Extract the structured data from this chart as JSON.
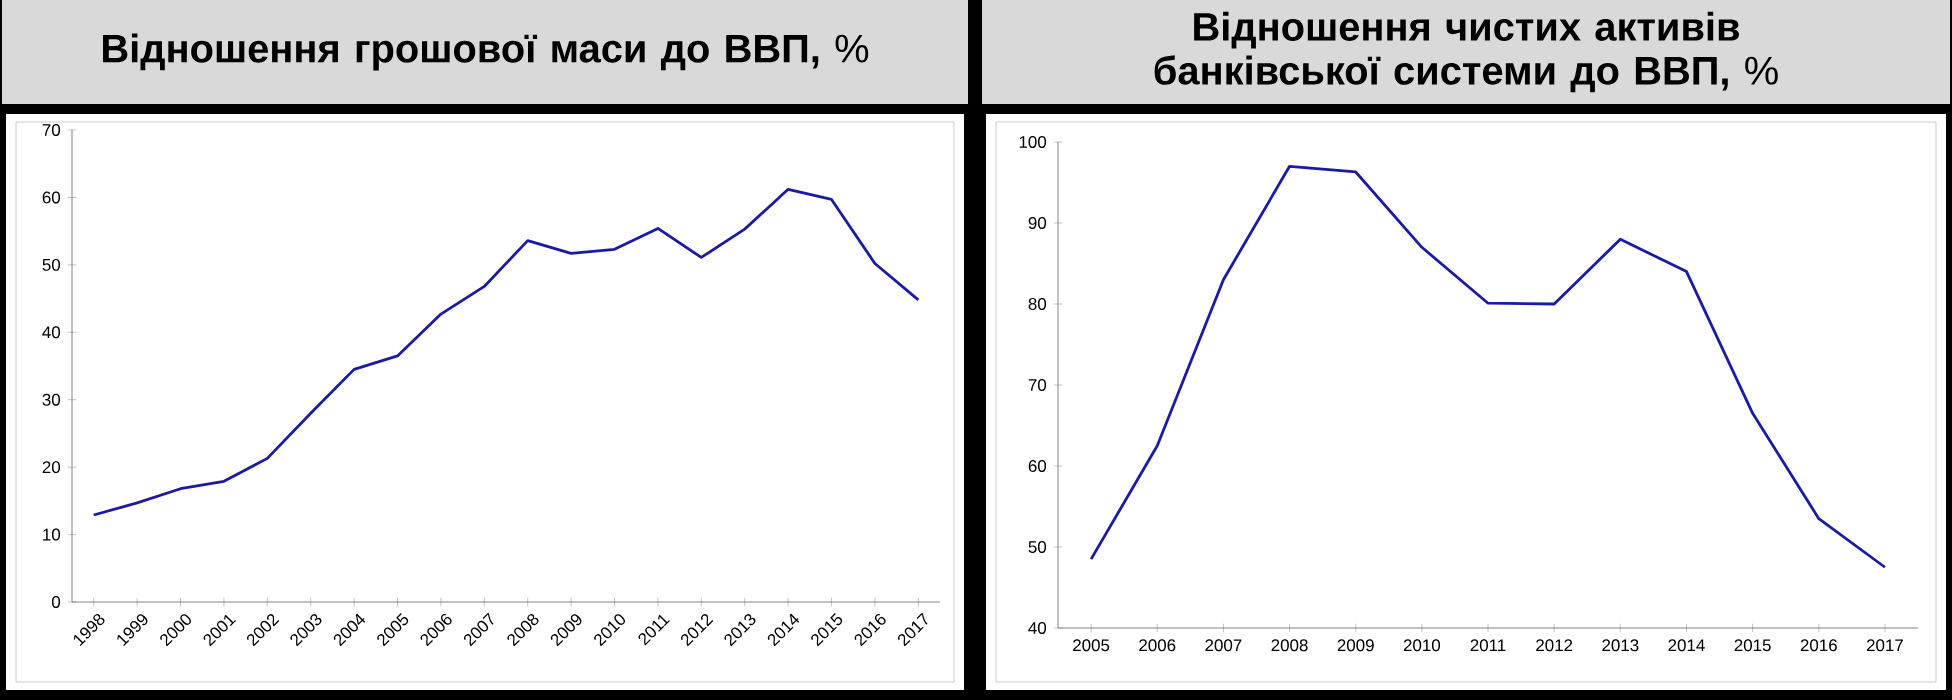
{
  "chart_data": [
    {
      "type": "line",
      "title": "**Відношення грошової маси до ВВП,** %",
      "categories": [
        "1998",
        "1999",
        "2000",
        "2001",
        "2002",
        "2003",
        "2004",
        "2005",
        "2006",
        "2007",
        "2008",
        "2009",
        "2010",
        "2011",
        "2012",
        "2013",
        "2014",
        "2015",
        "2016",
        "2017"
      ],
      "values": [
        12.9,
        14.7,
        16.8,
        17.9,
        21.3,
        28,
        34.5,
        36.5,
        42.7,
        46.8,
        53.6,
        51.7,
        52.3,
        55.4,
        51.1,
        55.3,
        61.2,
        59.7,
        50.2,
        44.8
      ],
      "color": "#1a1aa8",
      "ylim": [
        0,
        70
      ],
      "yticks": [
        0,
        10,
        20,
        30,
        40,
        50,
        60,
        70
      ]
    },
    {
      "type": "line",
      "title": "**Відношення чистих активів банківської системи до ВВП,** %",
      "categories": [
        "2005",
        "2006",
        "2007",
        "2008",
        "2009",
        "2010",
        "2011",
        "2012",
        "2013",
        "2014",
        "2015",
        "2016",
        "2017"
      ],
      "values": [
        48.5,
        62.5,
        83,
        97,
        96.3,
        87,
        80.1,
        80,
        88,
        84,
        66.5,
        53.5,
        47.5
      ],
      "color": "#1a1aa8",
      "ylim": [
        40,
        100
      ],
      "yticks": [
        40,
        50,
        60,
        70,
        80,
        90,
        100
      ]
    }
  ]
}
